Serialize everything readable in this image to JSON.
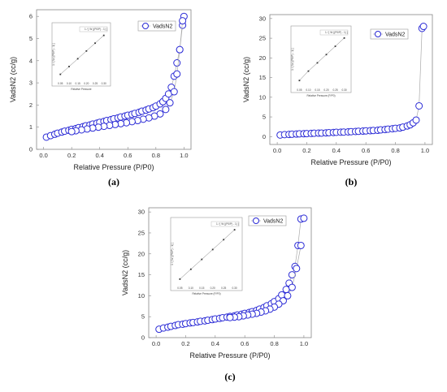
{
  "chart_data": [
    {
      "type": "scatter",
      "panel_label": "(a)",
      "xlabel": "Relative Pressure (P/P0)",
      "ylabel": "VadsN2 (cc/g)",
      "legend": "VadsN2",
      "xlim": [
        -0.05,
        1.05
      ],
      "ylim": [
        0,
        6.3
      ],
      "xticks": [
        "0.0",
        "0.2",
        "0.4",
        "0.6",
        "0.8",
        "1.0"
      ],
      "yticks": [
        "0",
        "1",
        "2",
        "3",
        "4",
        "5",
        "6"
      ],
      "series": [
        {
          "x": [
            0.02,
            0.05,
            0.08,
            0.1,
            0.13,
            0.15,
            0.18,
            0.2,
            0.23,
            0.25,
            0.28,
            0.3,
            0.33,
            0.35,
            0.38,
            0.4,
            0.43,
            0.45,
            0.48,
            0.5,
            0.53,
            0.55,
            0.58,
            0.6,
            0.63,
            0.65,
            0.68,
            0.7,
            0.73,
            0.75,
            0.78,
            0.8,
            0.83,
            0.85,
            0.87,
            0.89,
            0.91,
            0.93,
            0.95,
            0.97,
            0.99,
            1.0
          ],
          "y": [
            0.55,
            0.62,
            0.68,
            0.73,
            0.78,
            0.82,
            0.86,
            0.9,
            0.94,
            0.98,
            1.02,
            1.06,
            1.1,
            1.14,
            1.18,
            1.22,
            1.26,
            1.3,
            1.34,
            1.38,
            1.42,
            1.46,
            1.5,
            1.54,
            1.58,
            1.62,
            1.67,
            1.72,
            1.77,
            1.82,
            1.88,
            1.95,
            2.05,
            2.15,
            2.3,
            2.5,
            2.8,
            3.3,
            3.9,
            4.5,
            5.6,
            6.0
          ]
        },
        {
          "x": [
            0.99,
            0.97,
            0.95,
            0.93,
            0.9,
            0.87,
            0.83,
            0.79,
            0.75,
            0.71,
            0.67,
            0.63,
            0.59,
            0.55,
            0.51,
            0.47,
            0.43,
            0.39,
            0.35,
            0.31,
            0.27,
            0.23,
            0.2
          ],
          "y": [
            5.8,
            4.5,
            3.4,
            2.6,
            2.1,
            1.8,
            1.6,
            1.5,
            1.42,
            1.36,
            1.3,
            1.25,
            1.2,
            1.16,
            1.12,
            1.08,
            1.04,
            1.0,
            0.96,
            0.92,
            0.88,
            0.84,
            0.8
          ]
        }
      ],
      "inset": {
        "legend": "1 / [ W ((P0/P) - 1) ]",
        "xlabel": "Relative Pressure",
        "ylabel": "1 / [ W ((P0/P) - 1) ]",
        "xticks": [
          "0.05",
          "0.10",
          "0.15",
          "0.20",
          "0.25",
          "0.30"
        ],
        "x": [
          0.05,
          0.1,
          0.15,
          0.2,
          0.25,
          0.3
        ],
        "y": [
          0.1,
          0.25,
          0.4,
          0.55,
          0.7,
          0.85
        ]
      }
    },
    {
      "type": "scatter",
      "panel_label": "(b)",
      "xlabel": "Relative Pressure (P/P0)",
      "ylabel": "VadsN2 (cc/g)",
      "legend": "VadsN2",
      "xlim": [
        -0.05,
        1.05
      ],
      "ylim": [
        -2,
        31
      ],
      "xticks": [
        "0.0",
        "0.2",
        "0.4",
        "0.6",
        "0.8",
        "1.0"
      ],
      "yticks": [
        "0",
        "5",
        "10",
        "15",
        "20",
        "25",
        "30"
      ],
      "series": [
        {
          "x": [
            0.02,
            0.05,
            0.08,
            0.1,
            0.13,
            0.15,
            0.18,
            0.2,
            0.23,
            0.25,
            0.28,
            0.3,
            0.33,
            0.35,
            0.38,
            0.4,
            0.43,
            0.45,
            0.48,
            0.5,
            0.53,
            0.55,
            0.58,
            0.6,
            0.63,
            0.65,
            0.68,
            0.7,
            0.73,
            0.75,
            0.78,
            0.8,
            0.83,
            0.85,
            0.88,
            0.9,
            0.92,
            0.94,
            0.96,
            0.98,
            0.99
          ],
          "y": [
            0.4,
            0.5,
            0.55,
            0.6,
            0.65,
            0.7,
            0.72,
            0.75,
            0.8,
            0.85,
            0.88,
            0.9,
            0.95,
            1.0,
            1.05,
            1.1,
            1.12,
            1.15,
            1.2,
            1.25,
            1.3,
            1.35,
            1.4,
            1.45,
            1.5,
            1.55,
            1.6,
            1.7,
            1.8,
            1.9,
            2.0,
            2.1,
            2.2,
            2.4,
            2.7,
            3.0,
            3.5,
            4.2,
            7.8,
            27.5,
            28.0
          ]
        }
      ],
      "inset": {
        "legend": "1 / [ W ((P0/P) - 1) ]",
        "xlabel": "Relative Pressure (P/P0)",
        "ylabel": "1 / [ W ((P0/P) - 1) ]",
        "xticks": [
          "0.05",
          "0.10",
          "0.15",
          "0.20",
          "0.25",
          "0.30"
        ],
        "x": [
          0.05,
          0.1,
          0.15,
          0.2,
          0.25,
          0.3
        ],
        "y": [
          0.1,
          0.27,
          0.42,
          0.57,
          0.72,
          0.87
        ]
      }
    },
    {
      "type": "scatter",
      "panel_label": "(c)",
      "xlabel": "Relative Pressure (P/P0)",
      "ylabel": "VadsN2 (cc/g)",
      "legend": "VadsN2",
      "xlim": [
        -0.05,
        1.05
      ],
      "ylim": [
        0,
        31
      ],
      "xticks": [
        "0.0",
        "0.2",
        "0.4",
        "0.6",
        "0.8",
        "1.0"
      ],
      "yticks": [
        "0",
        "5",
        "10",
        "15",
        "20",
        "25",
        "30"
      ],
      "series": [
        {
          "x": [
            0.02,
            0.05,
            0.08,
            0.1,
            0.13,
            0.15,
            0.18,
            0.2,
            0.23,
            0.25,
            0.28,
            0.3,
            0.33,
            0.35,
            0.38,
            0.4,
            0.43,
            0.45,
            0.48,
            0.5,
            0.53,
            0.55,
            0.58,
            0.6,
            0.63,
            0.65,
            0.68,
            0.7,
            0.73,
            0.75,
            0.78,
            0.8,
            0.83,
            0.85,
            0.88,
            0.9,
            0.92,
            0.94,
            0.96,
            0.98,
            1.0
          ],
          "y": [
            2.0,
            2.3,
            2.5,
            2.7,
            2.9,
            3.1,
            3.2,
            3.35,
            3.5,
            3.6,
            3.75,
            3.9,
            4.0,
            4.15,
            4.3,
            4.45,
            4.6,
            4.75,
            4.9,
            5.05,
            5.2,
            5.4,
            5.6,
            5.8,
            6.0,
            6.2,
            6.5,
            6.8,
            7.2,
            7.6,
            8.1,
            8.6,
            9.3,
            10.2,
            11.5,
            13.0,
            15.0,
            17.0,
            22.0,
            28.3,
            28.5
          ]
        },
        {
          "x": [
            0.98,
            0.95,
            0.92,
            0.89,
            0.86,
            0.83,
            0.8,
            0.77,
            0.74,
            0.71,
            0.68,
            0.65,
            0.62,
            0.59,
            0.56,
            0.53,
            0.5
          ],
          "y": [
            22.0,
            16.5,
            12.0,
            10.0,
            8.8,
            8.0,
            7.3,
            6.8,
            6.4,
            6.1,
            5.8,
            5.6,
            5.4,
            5.2,
            5.0,
            4.9,
            4.8
          ]
        }
      ],
      "inset": {
        "legend": "1 / [ W ((P0/P) - 1) ]",
        "xlabel": "Relative Pressure (P/P0)",
        "ylabel": "1 / [ W ((P0/P) - 1) ]",
        "xticks": [
          "0.05",
          "0.10",
          "0.15",
          "0.20",
          "0.25",
          "0.30"
        ],
        "x": [
          0.05,
          0.1,
          0.15,
          0.2,
          0.25,
          0.3
        ],
        "y": [
          0.08,
          0.24,
          0.4,
          0.56,
          0.72,
          0.88
        ]
      }
    }
  ]
}
